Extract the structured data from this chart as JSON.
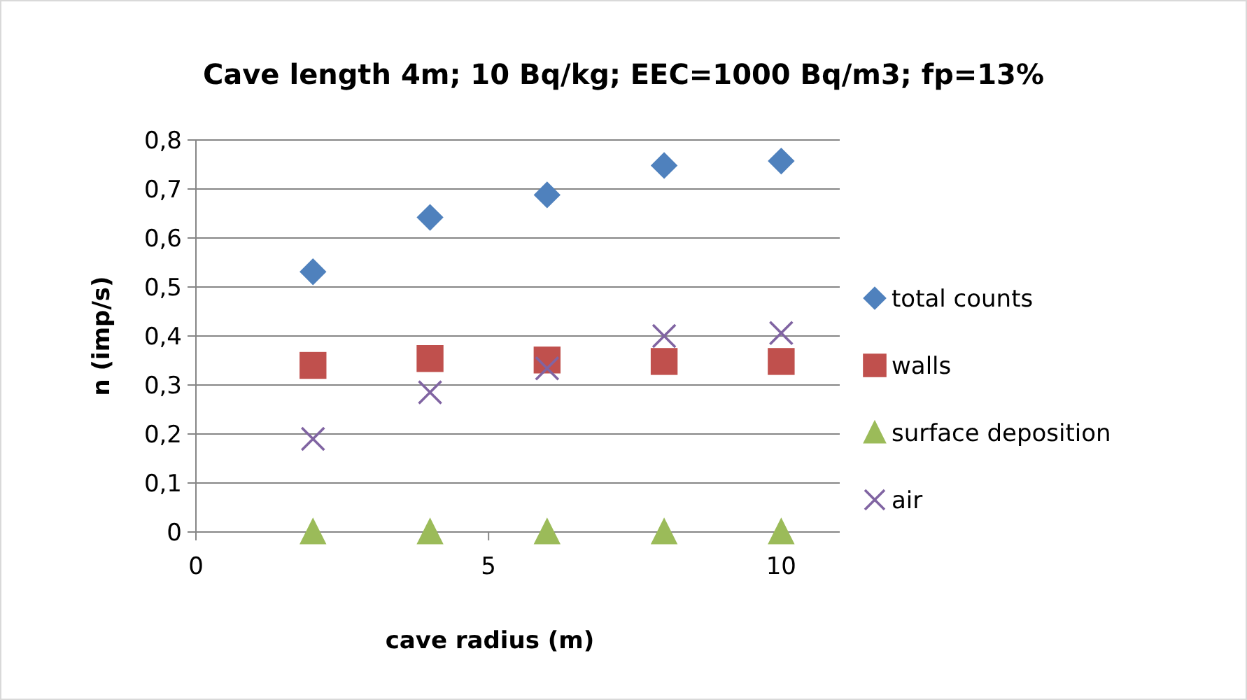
{
  "chart_data": {
    "type": "scatter",
    "title": "Cave length 4m; 10 Bq/kg; EEC=1000 Bq/m3; fp=13%",
    "xlabel": "cave radius (m)",
    "ylabel": "n (imp/s)",
    "x": [
      2,
      4,
      6,
      8,
      10
    ],
    "xlim": [
      0,
      11
    ],
    "xticks": [
      0,
      5,
      10
    ],
    "ylim": [
      0,
      0.8
    ],
    "yticks": [
      {
        "value": 0,
        "label": "0"
      },
      {
        "value": 0.1,
        "label": "0,1"
      },
      {
        "value": 0.2,
        "label": "0,2"
      },
      {
        "value": 0.3,
        "label": "0,3"
      },
      {
        "value": 0.4,
        "label": "0,4"
      },
      {
        "value": 0.5,
        "label": "0,5"
      },
      {
        "value": 0.6,
        "label": "0,6"
      },
      {
        "value": 0.7,
        "label": "0,7"
      },
      {
        "value": 0.8,
        "label": "0,8"
      }
    ],
    "grid": "y",
    "legend": "right",
    "series": [
      {
        "name": "total counts",
        "color": "#4f81bd",
        "marker": "diamond",
        "values": [
          0.531,
          0.642,
          0.688,
          0.748,
          0.757
        ]
      },
      {
        "name": "walls",
        "color": "#c0504d",
        "marker": "square",
        "values": [
          0.34,
          0.354,
          0.351,
          0.348,
          0.348
        ]
      },
      {
        "name": "surface deposition",
        "color": "#9bbb59",
        "marker": "triangle",
        "values": [
          0,
          0,
          0,
          0,
          0
        ]
      },
      {
        "name": "air",
        "color": "#8064a2",
        "marker": "cross",
        "values": [
          0.19,
          0.285,
          0.334,
          0.4,
          0.406
        ]
      }
    ]
  }
}
